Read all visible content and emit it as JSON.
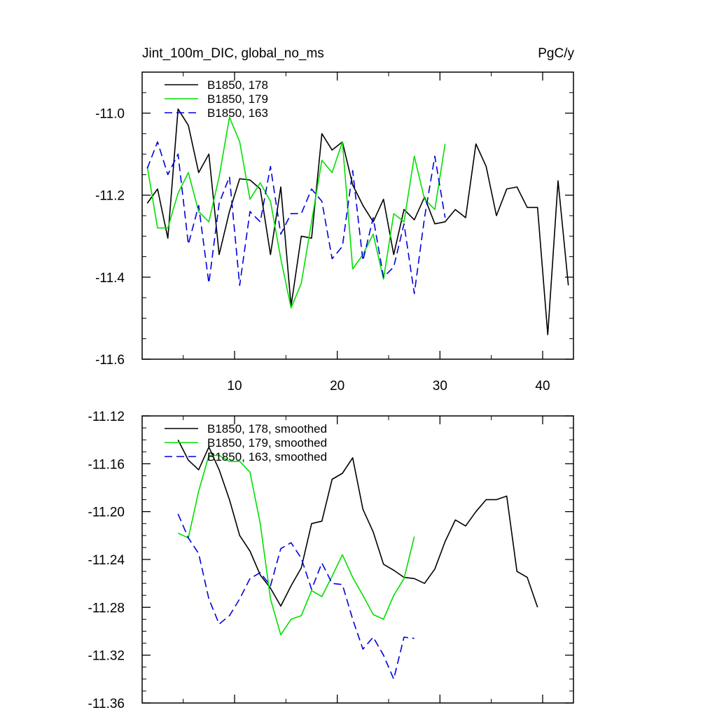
{
  "chart_data": [
    {
      "type": "line",
      "title": "Jint_100m_DIC, global_no_ms",
      "units": "PgC/y",
      "xlim": [
        1,
        43
      ],
      "ylim": [
        -11.6,
        -10.9
      ],
      "yticks": [
        -11.6,
        -11.4,
        -11.2,
        -11.0
      ],
      "ytick_labels": [
        "-11.6",
        "-11.4",
        "-11.2",
        "-11.0"
      ],
      "xticks": [
        10,
        20,
        30,
        40
      ],
      "xtick_labels": [
        "10",
        "20",
        "30",
        "40"
      ],
      "legend_position": "top-left",
      "series": [
        {
          "name": "B1850, 178",
          "color": "#000000",
          "dash": "solid",
          "x": [
            1.5,
            2.5,
            3.5,
            4.5,
            5.5,
            6.5,
            7.5,
            8.5,
            9.5,
            10.5,
            11.5,
            12.5,
            13.5,
            14.5,
            15.5,
            16.5,
            17.5,
            18.5,
            19.5,
            20.5,
            21.5,
            22.5,
            23.5,
            24.5,
            25.5,
            26.5,
            27.5,
            28.5,
            29.5,
            30.5,
            31.5,
            32.5,
            33.5,
            34.5,
            35.5,
            36.5,
            37.5,
            38.5,
            39.5,
            40.5,
            41.5,
            42.5
          ],
          "y": [
            -11.22,
            -11.185,
            -11.305,
            -10.99,
            -11.03,
            -11.145,
            -11.1,
            -11.345,
            -11.24,
            -11.16,
            -11.163,
            -11.185,
            -11.345,
            -11.18,
            -11.47,
            -11.3,
            -11.305,
            -11.05,
            -11.09,
            -11.07,
            -11.175,
            -11.225,
            -11.265,
            -11.21,
            -11.345,
            -11.235,
            -11.26,
            -11.205,
            -11.27,
            -11.265,
            -11.235,
            -11.255,
            -11.075,
            -11.13,
            -11.25,
            -11.185,
            -11.18,
            -11.23,
            -11.23,
            -11.54,
            -11.165,
            -11.42
          ]
        },
        {
          "name": "B1850, 179",
          "color": "#00e000",
          "dash": "solid",
          "x": [
            1.5,
            2.5,
            3.5,
            4.5,
            5.5,
            6.5,
            7.5,
            8.5,
            9.5,
            10.5,
            11.5,
            12.5,
            13.5,
            14.5,
            15.5,
            16.5,
            17.5,
            18.5,
            19.5,
            20.5,
            21.5,
            22.5,
            23.5,
            24.5,
            25.5,
            26.5,
            27.5,
            28.5,
            29.5,
            30.5
          ],
          "y": [
            -11.13,
            -11.28,
            -11.28,
            -11.195,
            -11.145,
            -11.24,
            -11.265,
            -11.155,
            -11.01,
            -11.07,
            -11.21,
            -11.17,
            -11.215,
            -11.355,
            -11.475,
            -11.415,
            -11.265,
            -11.115,
            -11.145,
            -11.07,
            -11.38,
            -11.345,
            -11.295,
            -11.405,
            -11.245,
            -11.265,
            -11.105,
            -11.21,
            -11.235,
            -11.075
          ]
        },
        {
          "name": "B1850, 163",
          "color": "#0000dd",
          "dash": "dashed",
          "x": [
            1.5,
            2.5,
            3.5,
            4.5,
            5.5,
            6.5,
            7.5,
            8.5,
            9.5,
            10.5,
            11.5,
            12.5,
            13.5,
            14.5,
            15.5,
            16.5,
            17.5,
            18.5,
            19.5,
            20.5,
            21.5,
            22.5,
            23.5,
            24.5,
            25.5,
            26.5,
            27.5,
            28.5,
            29.5,
            30.5
          ],
          "y": [
            -11.135,
            -11.07,
            -11.15,
            -11.1,
            -11.32,
            -11.225,
            -11.415,
            -11.22,
            -11.155,
            -11.42,
            -11.24,
            -11.265,
            -11.13,
            -11.295,
            -11.245,
            -11.245,
            -11.185,
            -11.215,
            -11.355,
            -11.325,
            -11.14,
            -11.36,
            -11.255,
            -11.4,
            -11.375,
            -11.27,
            -11.44,
            -11.255,
            -11.105,
            -11.255
          ]
        }
      ]
    },
    {
      "type": "line",
      "title": "",
      "xlim": [
        1,
        43
      ],
      "ylim": [
        -11.36,
        -11.12
      ],
      "yticks": [
        -11.36,
        -11.32,
        -11.28,
        -11.24,
        -11.2,
        -11.16,
        -11.12
      ],
      "ytick_labels": [
        "-11.36",
        "-11.32",
        "-11.28",
        "-11.24",
        "-11.20",
        "-11.16",
        "-11.12"
      ],
      "xticks": [
        10,
        20,
        30,
        40
      ],
      "legend_position": "top-left",
      "series": [
        {
          "name": "B1850, 178, smoothed",
          "color": "#000000",
          "dash": "solid",
          "x": [
            4.5,
            5.5,
            6.5,
            7.5,
            8.5,
            9.5,
            10.5,
            11.5,
            12.5,
            13.5,
            14.5,
            15.5,
            16.5,
            17.5,
            18.5,
            19.5,
            20.5,
            21.5,
            22.5,
            23.5,
            24.5,
            25.5,
            26.5,
            27.5,
            28.5,
            29.5,
            30.5,
            31.5,
            32.5,
            33.5,
            34.5,
            35.5,
            36.5,
            37.5,
            38.5,
            39.5
          ],
          "y": [
            -11.14,
            -11.157,
            -11.165,
            -11.146,
            -11.165,
            -11.19,
            -11.22,
            -11.233,
            -11.253,
            -11.264,
            -11.279,
            -11.262,
            -11.247,
            -11.21,
            -11.208,
            -11.173,
            -11.168,
            -11.155,
            -11.198,
            -11.217,
            -11.244,
            -11.249,
            -11.255,
            -11.256,
            -11.26,
            -11.248,
            -11.225,
            -11.207,
            -11.212,
            -11.2,
            -11.19,
            -11.19,
            -11.187,
            -11.25,
            -11.255,
            -11.28
          ]
        },
        {
          "name": "B1850, 179, smoothed",
          "color": "#00e000",
          "dash": "solid",
          "x": [
            4.5,
            5.5,
            6.5,
            7.5,
            8.5,
            9.5,
            10.5,
            11.5,
            12.5,
            13.5,
            14.5,
            15.5,
            16.5,
            17.5,
            18.5,
            19.5,
            20.5,
            21.5,
            22.5,
            23.5,
            24.5,
            25.5,
            26.5,
            27.5
          ],
          "y": [
            -11.218,
            -11.222,
            -11.183,
            -11.153,
            -11.153,
            -11.158,
            -11.158,
            -11.167,
            -11.21,
            -11.273,
            -11.303,
            -11.29,
            -11.287,
            -11.266,
            -11.271,
            -11.254,
            -11.236,
            -11.255,
            -11.27,
            -11.286,
            -11.29,
            -11.27,
            -11.256,
            -11.221
          ]
        },
        {
          "name": "B1850, 163, smoothed",
          "color": "#0000dd",
          "dash": "dashed",
          "x": [
            4.5,
            5.5,
            6.5,
            7.5,
            8.5,
            9.5,
            10.5,
            11.5,
            12.5,
            13.5,
            14.5,
            15.5,
            16.5,
            17.5,
            18.5,
            19.5,
            20.5,
            21.5,
            22.5,
            23.5,
            24.5,
            25.5,
            26.5,
            27.5
          ],
          "y": [
            -11.202,
            -11.222,
            -11.235,
            -11.273,
            -11.294,
            -11.287,
            -11.273,
            -11.256,
            -11.251,
            -11.262,
            -11.231,
            -11.226,
            -11.239,
            -11.265,
            -11.243,
            -11.26,
            -11.261,
            -11.29,
            -11.315,
            -11.305,
            -11.32,
            -11.34,
            -11.305,
            -11.306
          ]
        }
      ]
    }
  ]
}
